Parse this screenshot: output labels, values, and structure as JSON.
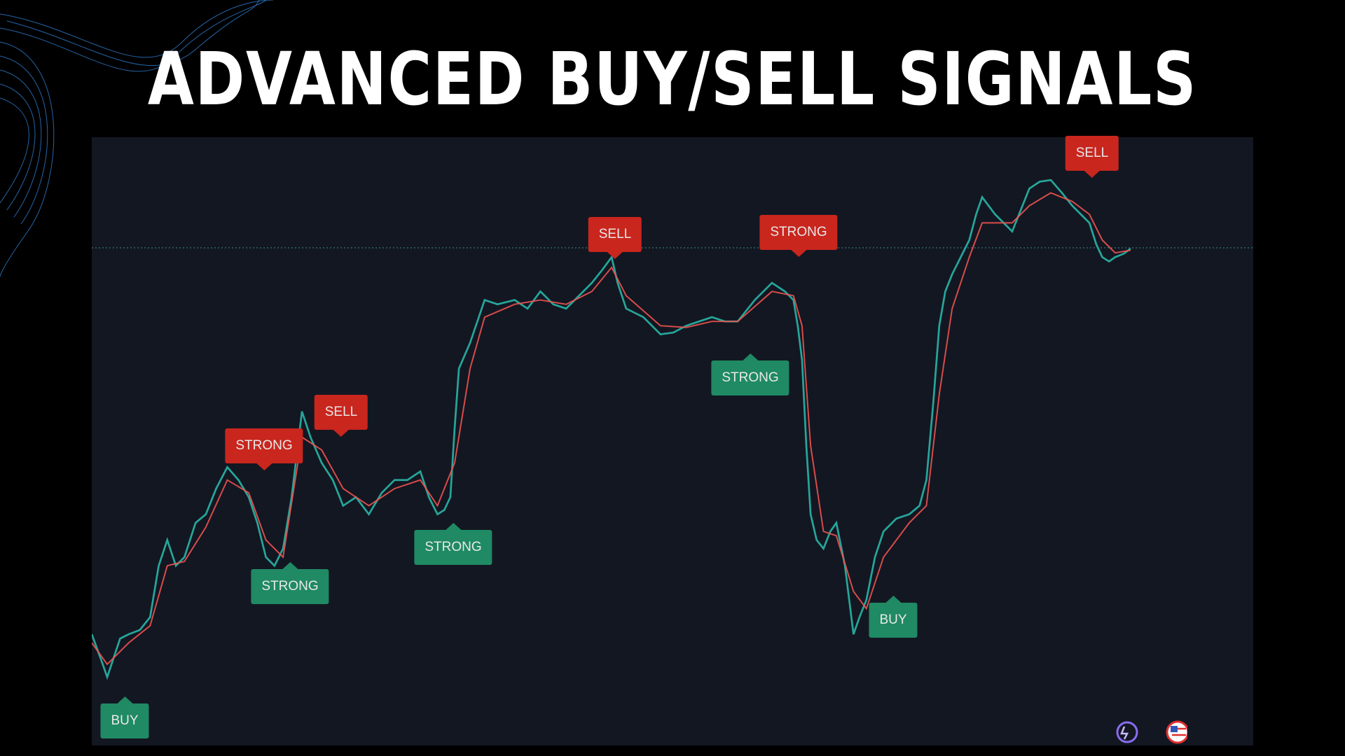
{
  "header": {
    "title": "ADVANCED BUY/SELL SIGNALS"
  },
  "signals": [
    {
      "label": "BUY",
      "color": "#1f8a63"
    },
    {
      "label": "STRONG",
      "color": "#c9261e"
    },
    {
      "label": "STRONG",
      "color": "#1f8a63"
    },
    {
      "label": "SELL",
      "color": "#c9261e"
    },
    {
      "label": "STRONG",
      "color": "#1f8a63"
    },
    {
      "label": "SELL",
      "color": "#c9261e"
    },
    {
      "label": "STRONG",
      "color": "#c9261e"
    },
    {
      "label": "STRONG",
      "color": "#1f8a63"
    },
    {
      "label": "BUY",
      "color": "#1f8a63"
    },
    {
      "label": "SELL",
      "color": "#c9261e"
    }
  ]
}
